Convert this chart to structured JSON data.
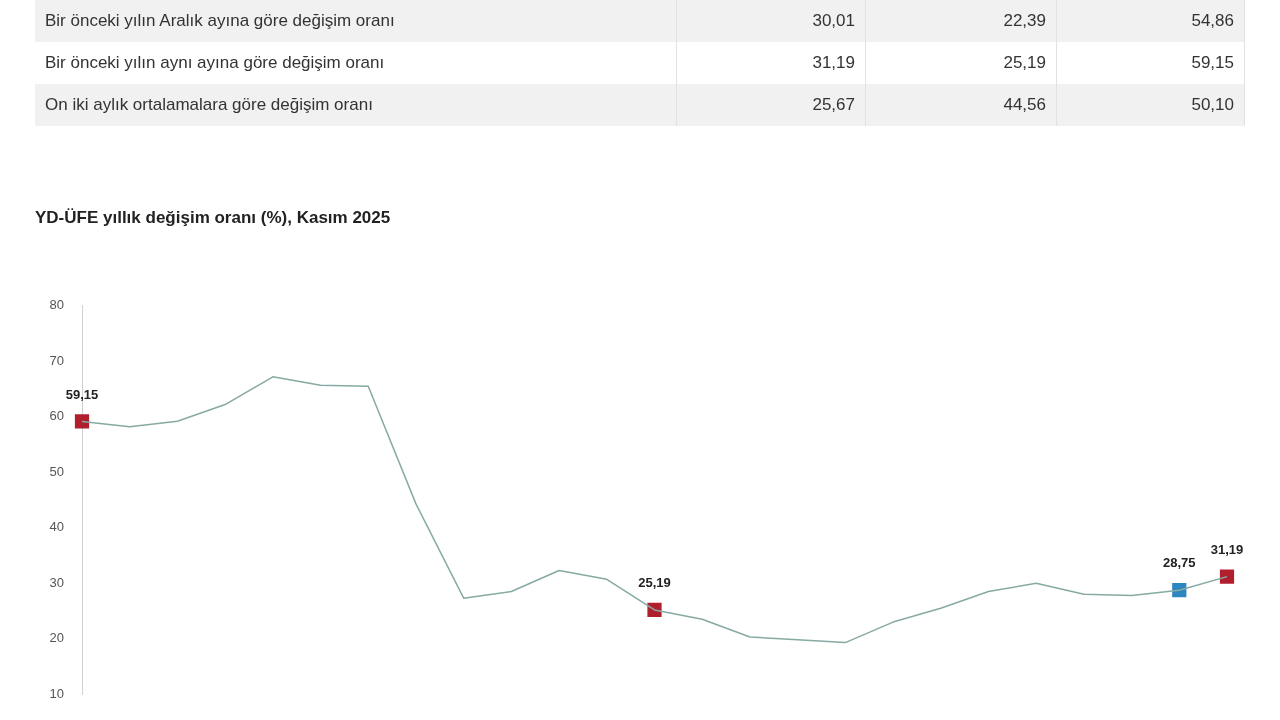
{
  "chart_data": [
    {
      "type": "other",
      "annotations": [
        "Bir önceki yılın Aralık ayına göre değişim oranı",
        "30,01",
        "22,39",
        "54,86",
        "Bir önceki yılın aynı ayına göre değişim oranı",
        "31,19",
        "25,19",
        "59,15",
        "On iki aylık ortalamalara göre değişim oranı",
        "25,67",
        "44,56",
        "50,10"
      ]
    },
    {
      "type": "line",
      "title": "YD-ÜFE yıllık değişim oranı (%), Kasım 2025",
      "categories": [
        null,
        null,
        null,
        null,
        null,
        null,
        null,
        null,
        null,
        null,
        null,
        null,
        null,
        null,
        null,
        null,
        null,
        null,
        null,
        null,
        null,
        null,
        null,
        null,
        null
      ],
      "series": [
        {
          "color": "#86aaa3",
          "values": [
            59.15,
            58.2,
            59.2,
            62.2,
            67.2,
            65.7,
            65.5,
            44.3,
            27.3,
            28.5,
            32.3,
            30.7,
            25.19,
            23.5,
            20.3,
            19.8,
            19.3,
            23,
            25.5,
            28.5,
            30,
            28,
            27.8,
            28.75,
            31.19
          ]
        },
        {
          "type": "scatter",
          "marker": "square",
          "values": [
            59.15,
            null,
            null,
            null,
            null,
            null,
            null,
            null,
            null,
            null,
            null,
            null,
            25.19,
            null,
            null,
            null,
            null,
            null,
            null,
            null,
            null,
            null,
            null,
            28.75,
            31.19
          ],
          "colors": [
            "#b01f2e",
            null,
            null,
            null,
            null,
            null,
            null,
            null,
            null,
            null,
            null,
            null,
            "#b01f2e",
            null,
            null,
            null,
            null,
            null,
            null,
            null,
            null,
            null,
            null,
            "#2e86c1",
            "#b01f2e"
          ],
          "value_labels": [
            "59,15",
            null,
            null,
            null,
            null,
            null,
            null,
            null,
            null,
            null,
            null,
            null,
            "25,19",
            null,
            null,
            null,
            null,
            null,
            null,
            null,
            null,
            null,
            null,
            "28,75",
            "31,19"
          ]
        }
      ],
      "ylim": [
        10,
        80
      ],
      "yticks": [
        10,
        20,
        30,
        40,
        50,
        60,
        70,
        80
      ],
      "grid": false,
      "legend": false,
      "tick_labels": "y"
    }
  ]
}
